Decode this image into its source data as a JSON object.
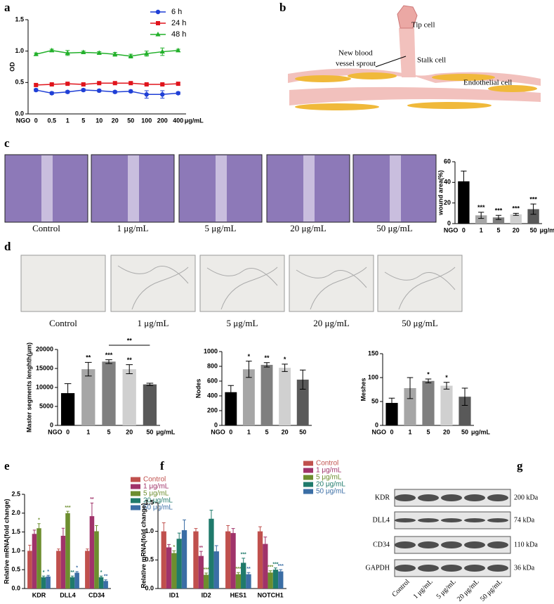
{
  "panel_labels": [
    "a",
    "b",
    "c",
    "d",
    "e",
    "f",
    "g"
  ],
  "diagram": {
    "tip": "Tip cell",
    "sprout": [
      "New blood",
      "vessel sprout"
    ],
    "stalk": "Stalk cell",
    "endothelial": "Endothelial cell"
  },
  "wound_images": {
    "captions": [
      "Control",
      "1 μg/mL",
      "5 μg/mL",
      "20 μg/mL",
      "50 μg/mL"
    ]
  },
  "tube_images": {
    "captions": [
      "Control",
      "1 μg/mL",
      "5 μg/mL",
      "20 μg/mL",
      "50 μg/mL"
    ]
  },
  "western_blot": {
    "proteins": [
      "KDR",
      "DLL4",
      "CD34",
      "GAPDH"
    ],
    "sizes": [
      "200 kDa",
      "74 kDa",
      "110 kDa",
      "36 kDa"
    ],
    "lanes": [
      "Control",
      "1 μg/mL",
      "5 μg/mL",
      "20 μg/mL",
      "50 μg/mL"
    ]
  },
  "chart_data": [
    {
      "type": "line",
      "ylabel": "OD",
      "x_prefix": "NGO",
      "x_unit": "μg/mL",
      "categories": [
        "0",
        "0.5",
        "1",
        "5",
        "10",
        "20",
        "50",
        "100",
        "200",
        "400"
      ],
      "ylim": [
        0,
        1.5
      ],
      "yticks": [
        {
          "value": 0,
          "label": "0.0"
        },
        0.5,
        {
          "value": 1,
          "label": "1.0"
        },
        1.5
      ],
      "legend": "top-right",
      "series": [
        {
          "name": "6 h",
          "color": "#1f3fd6",
          "marker": "circle",
          "values": [
            0.38,
            0.33,
            0.35,
            0.38,
            0.37,
            0.35,
            0.36,
            0.31,
            0.31,
            0.33
          ],
          "errors": [
            0.02,
            0.02,
            0.02,
            0.02,
            0.02,
            0.02,
            0.02,
            0.06,
            0.06,
            0.02
          ]
        },
        {
          "name": "24 h",
          "color": "#e0141c",
          "marker": "square",
          "values": [
            0.46,
            0.47,
            0.48,
            0.47,
            0.49,
            0.49,
            0.49,
            0.47,
            0.47,
            0.48
          ],
          "errors": [
            0.02,
            0.02,
            0.02,
            0.02,
            0.02,
            0.02,
            0.02,
            0.02,
            0.02,
            0.02
          ]
        },
        {
          "name": "48 h",
          "color": "#22b02a",
          "marker": "triangle",
          "values": [
            0.95,
            1.01,
            0.97,
            0.98,
            0.97,
            0.95,
            0.92,
            0.96,
            0.99,
            1.01
          ],
          "errors": [
            0.02,
            0.02,
            0.04,
            0.02,
            0.02,
            0.03,
            0.03,
            0.04,
            0.06,
            0.02
          ]
        }
      ]
    },
    {
      "type": "bar",
      "ylabel": "wound area(%)",
      "x_prefix": "NGO",
      "x_unit": "μg/mL",
      "categories": [
        "0",
        "1",
        "5",
        "20",
        "50"
      ],
      "ylim": [
        0,
        60
      ],
      "yticks": [
        0,
        20,
        40,
        60
      ],
      "values": [
        41,
        8,
        6,
        9,
        14
      ],
      "errors": [
        10,
        3,
        2,
        1,
        5
      ],
      "stars": [
        null,
        "***",
        "***",
        "***",
        "***"
      ],
      "colors": [
        "#000000",
        "#a6a6a6",
        "#7f7f7f",
        "#d0d0d0",
        "#595959"
      ]
    },
    {
      "type": "bar",
      "ylabel": "Master segments lenghth(μm)",
      "x_prefix": "NGO",
      "x_unit": "μg/mL",
      "categories": [
        "0",
        "1",
        "5",
        "20",
        "50"
      ],
      "ylim": [
        0,
        20000
      ],
      "yticks": [
        0,
        5000,
        10000,
        15000,
        20000
      ],
      "values": [
        8500,
        14800,
        16800,
        14800,
        10800
      ],
      "errors": [
        2500,
        1800,
        500,
        1200,
        300
      ],
      "stars": [
        null,
        "**",
        "***",
        "**",
        null
      ],
      "bracket": {
        "between": [
          "5",
          "50"
        ],
        "label": "**"
      },
      "colors": [
        "#000000",
        "#a6a6a6",
        "#7f7f7f",
        "#d0d0d0",
        "#595959"
      ]
    },
    {
      "type": "bar",
      "ylabel": "Nodes",
      "x_prefix": "NGO",
      "categories": [
        "0",
        "1",
        "5",
        "20",
        "50"
      ],
      "ylim": [
        0,
        1000
      ],
      "yticks": [
        0,
        200,
        400,
        600,
        800,
        1000
      ],
      "values": [
        450,
        760,
        820,
        780,
        620
      ],
      "errors": [
        90,
        110,
        30,
        50,
        130
      ],
      "stars": [
        null,
        "*",
        "**",
        "*",
        null
      ],
      "colors": [
        "#000000",
        "#a6a6a6",
        "#7f7f7f",
        "#d0d0d0",
        "#595959"
      ]
    },
    {
      "type": "bar",
      "ylabel": "Meshes",
      "x_prefix": "NGO",
      "x_unit": "μg/mL",
      "categories": [
        "0",
        "1",
        "5",
        "20",
        "50"
      ],
      "ylim": [
        0,
        150
      ],
      "yticks": [
        0,
        50,
        100,
        150
      ],
      "values": [
        47,
        78,
        93,
        83,
        60
      ],
      "errors": [
        10,
        22,
        4,
        7,
        18
      ],
      "stars": [
        null,
        null,
        "*",
        "*",
        null
      ],
      "colors": [
        "#000000",
        "#a6a6a6",
        "#7f7f7f",
        "#d0d0d0",
        "#595959"
      ]
    },
    {
      "type": "grouped_bar",
      "ylabel": "Relative mRNA(fold change)",
      "categories": [
        "KDR",
        "DLL4",
        "CD34"
      ],
      "ylim": [
        0,
        2.5
      ],
      "yticks": [
        {
          "value": 0,
          "label": "0.0"
        },
        0.5,
        {
          "value": 1,
          "label": "1.0"
        },
        1.5,
        {
          "value": 2,
          "label": "2.0"
        },
        2.5
      ],
      "legend": "top-right",
      "series": [
        {
          "name": "Control",
          "color": "#c0504d",
          "values": [
            1.0,
            1.0,
            1.0
          ],
          "errors": [
            0.15,
            0.05,
            0.05
          ],
          "stars": [
            null,
            null,
            null
          ]
        },
        {
          "name": "1 μg/mL",
          "color": "#a0336a",
          "values": [
            1.45,
            1.4,
            1.92
          ],
          "errors": [
            0.1,
            0.2,
            0.35
          ],
          "stars": [
            null,
            null,
            "**"
          ]
        },
        {
          "name": "5 μg/mL",
          "color": "#6d8e2f",
          "values": [
            1.6,
            2.0,
            1.52
          ],
          "errors": [
            0.12,
            0.05,
            0.15
          ],
          "stars": [
            "*",
            "***",
            null
          ]
        },
        {
          "name": "20 μg/mL",
          "color": "#1f7a6b",
          "values": [
            0.3,
            0.3,
            0.3
          ],
          "errors": [
            0.03,
            0.03,
            0.03
          ],
          "stars": [
            "*",
            "**",
            "*"
          ]
        },
        {
          "name": "50 μg/mL",
          "color": "#3b6ea5",
          "values": [
            0.32,
            0.42,
            0.2
          ],
          "errors": [
            0.03,
            0.03,
            0.03
          ],
          "stars": [
            "*",
            "*",
            "**"
          ]
        }
      ]
    },
    {
      "type": "grouped_bar",
      "ylabel": "Relative mRNA(fold change)",
      "categories": [
        "ID1",
        "ID2",
        "HES1",
        "NOTCH1"
      ],
      "ylim": [
        0,
        1.5
      ],
      "yticks": [
        {
          "value": 0,
          "label": "0.0"
        },
        0.5,
        {
          "value": 1,
          "label": "1.0"
        },
        1.5
      ],
      "legend": "top-right",
      "series": [
        {
          "name": "Control",
          "color": "#c0504d",
          "values": [
            1.0,
            1.0,
            1.0,
            1.0
          ],
          "errors": [
            0.15,
            0.05,
            0.1,
            0.08
          ],
          "stars": [
            null,
            null,
            null,
            null
          ]
        },
        {
          "name": "1 μg/mL",
          "color": "#a0336a",
          "values": [
            0.72,
            0.57,
            0.97,
            0.78
          ],
          "errors": [
            0.05,
            0.08,
            0.08,
            0.12
          ],
          "stars": [
            null,
            "**",
            null,
            null
          ]
        },
        {
          "name": "5 μg/mL",
          "color": "#6d8e2f",
          "values": [
            0.62,
            0.24,
            0.25,
            0.28
          ],
          "errors": [
            0.04,
            0.03,
            0.03,
            0.03
          ],
          "stars": [
            "*",
            "***",
            "***",
            "***"
          ]
        },
        {
          "name": "20 μg/mL",
          "color": "#1f7a6b",
          "values": [
            0.87,
            1.22,
            0.45,
            0.33
          ],
          "errors": [
            0.1,
            0.15,
            0.08,
            0.03
          ],
          "stars": [
            null,
            null,
            "***",
            "***"
          ]
        },
        {
          "name": "50 μg/mL",
          "color": "#3b6ea5",
          "values": [
            1.02,
            0.65,
            0.25,
            0.3
          ],
          "errors": [
            0.18,
            0.1,
            0.03,
            0.03
          ],
          "stars": [
            null,
            null,
            "**",
            "***"
          ]
        }
      ]
    }
  ]
}
